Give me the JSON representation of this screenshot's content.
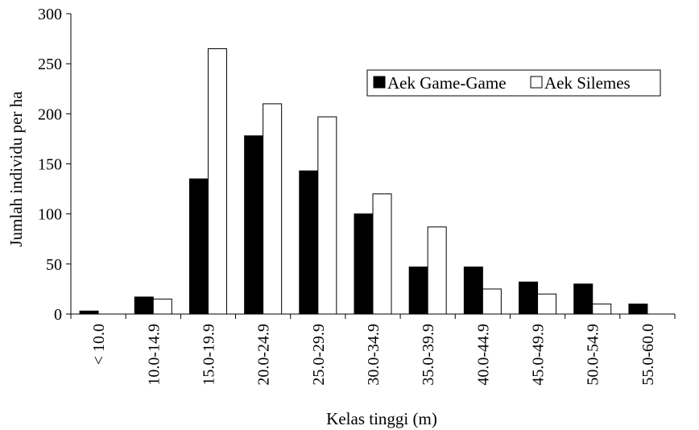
{
  "chart_data": {
    "type": "bar",
    "title": "",
    "xlabel": "Kelas tinggi (m)",
    "ylabel": "Jumlah individu per ha",
    "ylim": [
      0,
      300
    ],
    "yticks": [
      0,
      50,
      100,
      150,
      200,
      250,
      300
    ],
    "grid": false,
    "legend_position": "top-right",
    "categories": [
      "< 10.0",
      "10.0-14.9",
      "15.0-19.9",
      "20.0-24.9",
      "25.0-29.9",
      "30.0-34.9",
      "35.0-39.9",
      "40.0-44.9",
      "45.0-49.9",
      "50.0-54.9",
      "55.0-60.0"
    ],
    "series": [
      {
        "name": "Aek Game-Game",
        "color": "#000000",
        "values": [
          3,
          17,
          135,
          178,
          143,
          100,
          47,
          47,
          32,
          30,
          10
        ]
      },
      {
        "name": "Aek Silemes",
        "color": "#ffffff",
        "values": [
          0,
          15,
          265,
          210,
          197,
          120,
          87,
          25,
          20,
          10,
          0
        ]
      }
    ]
  }
}
